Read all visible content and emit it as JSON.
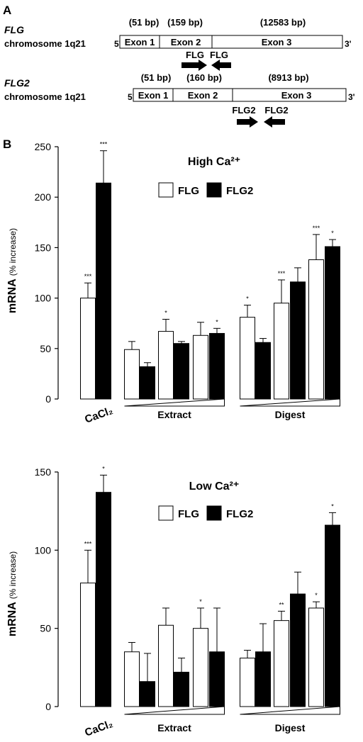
{
  "panel_a": {
    "label": "A",
    "genes": [
      {
        "name": "FLG",
        "chromosome": "chromosome 1q21",
        "five_prime": "5'",
        "three_prime": "3'",
        "exons": [
          {
            "label": "Exon 1",
            "size": "(51 bp)"
          },
          {
            "label": "Exon 2",
            "size": "(159 bp)"
          },
          {
            "label": "Exon 3",
            "size": "(12583 bp)"
          }
        ],
        "primers": [
          "FLG",
          "FLG"
        ]
      },
      {
        "name": "FLG2",
        "chromosome": "chromosome 1q21",
        "five_prime": "5'",
        "three_prime": "3'",
        "exons": [
          {
            "label": "Exon 1",
            "size": "(51 bp)"
          },
          {
            "label": "Exon 2",
            "size": "(160 bp)"
          },
          {
            "label": "Exon 3",
            "size": "(8913 bp)"
          }
        ],
        "primers": [
          "FLG2",
          "FLG2"
        ]
      }
    ]
  },
  "panel_b": {
    "label": "B"
  },
  "colors": {
    "flg_fill": "#ffffff",
    "flg2_fill": "#000000",
    "stroke": "#000000"
  },
  "chart_data": [
    {
      "type": "bar",
      "title": "High Ca²⁺",
      "ylabel": "mRNA",
      "ylabel_unit": "(% increase)",
      "ylim": [
        0,
        250
      ],
      "yticks": [
        0,
        50,
        100,
        150,
        200,
        250
      ],
      "groups": [
        {
          "label": "CaCl₂",
          "bars": 1,
          "wedge": false
        },
        {
          "label": "Extract",
          "bars": 3,
          "wedge": true
        },
        {
          "label": "Digest",
          "bars": 3,
          "wedge": true
        }
      ],
      "legend": [
        "FLG",
        "FLG2"
      ],
      "series": [
        {
          "name": "FLG",
          "values": [
            100,
            49,
            67,
            63,
            81,
            95,
            138
          ],
          "errors": [
            15,
            8,
            12,
            13,
            12,
            23,
            25
          ],
          "sig": [
            "***",
            "",
            "*",
            "",
            "*",
            "***",
            "***"
          ]
        },
        {
          "name": "FLG2",
          "values": [
            214,
            32,
            55,
            65,
            56,
            116,
            151
          ],
          "errors": [
            32,
            4,
            2,
            5,
            4,
            14,
            7
          ],
          "sig": [
            "***",
            "",
            "",
            "*",
            "",
            "",
            "*"
          ]
        }
      ]
    },
    {
      "type": "bar",
      "title": "Low Ca²⁺",
      "ylabel": "mRNA",
      "ylabel_unit": "(% increase)",
      "ylim": [
        0,
        150
      ],
      "yticks": [
        0,
        50,
        100,
        150
      ],
      "groups": [
        {
          "label": "CaCl₂",
          "bars": 1,
          "wedge": false
        },
        {
          "label": "Extract",
          "bars": 3,
          "wedge": true
        },
        {
          "label": "Digest",
          "bars": 3,
          "wedge": true
        }
      ],
      "legend": [
        "FLG",
        "FLG2"
      ],
      "series": [
        {
          "name": "FLG",
          "values": [
            79,
            35,
            52,
            50,
            31,
            55,
            63
          ],
          "errors": [
            21,
            6,
            11,
            13,
            5,
            6,
            4
          ],
          "sig": [
            "***",
            "",
            "",
            "*",
            "",
            "**",
            "*"
          ]
        },
        {
          "name": "FLG2",
          "values": [
            137,
            16,
            22,
            35,
            35,
            72,
            116
          ],
          "errors": [
            11,
            18,
            9,
            28,
            18,
            14,
            8
          ],
          "sig": [
            "*",
            "",
            "",
            "",
            "",
            "",
            "*"
          ]
        }
      ]
    }
  ]
}
